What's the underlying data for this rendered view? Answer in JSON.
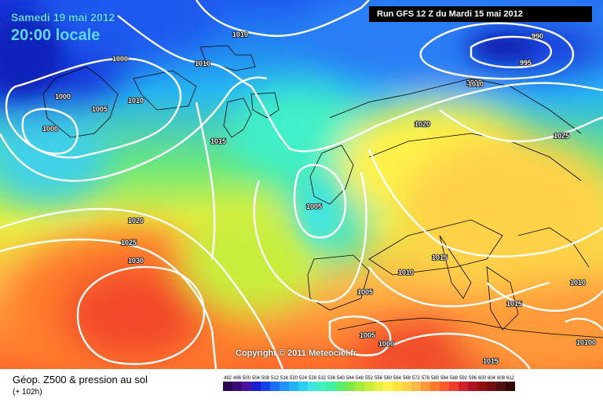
{
  "header": {
    "date": "Samedi 19 mai 2012",
    "time": "20:00 locale",
    "run": "Run GFS 12 Z du Mardi 15 mai 2012"
  },
  "copyright": "Copyright © 2011 Meteociel.fr",
  "footer": {
    "title": "Géop. Z500 & pression au sol",
    "lead": "(+ 102h)"
  },
  "isobar_labels": [
    "1010",
    "1010",
    "1000",
    "1010",
    "1000",
    "1005",
    "1000",
    "1010",
    "1015",
    "1020",
    "990",
    "995",
    "1010",
    "1020",
    "1025",
    "1005",
    "1020",
    "1025",
    "1030",
    "1015",
    "1010",
    "1005",
    "1005",
    "1000",
    "1015",
    "1010",
    "1015",
    "10100"
  ],
  "scale": {
    "values": [
      "492",
      "496",
      "500",
      "504",
      "508",
      "512",
      "516",
      "520",
      "524",
      "528",
      "532",
      "536",
      "540",
      "544",
      "548",
      "552",
      "556",
      "560",
      "564",
      "568",
      "572",
      "576",
      "580",
      "584",
      "588",
      "592",
      "596",
      "600",
      "604",
      "608",
      "612"
    ],
    "colors": [
      "#2a0a55",
      "#3a0a78",
      "#4b12a0",
      "#1b1bd0",
      "#1640e8",
      "#1c6cf5",
      "#1e90ff",
      "#21b2f5",
      "#2ad0ee",
      "#3fe6e0",
      "#40f0c0",
      "#40f0a0",
      "#5aee70",
      "#7ee84a",
      "#a6ea3a",
      "#c8ee3c",
      "#e6f040",
      "#fff24a",
      "#ffe53a",
      "#ffd24a",
      "#ffb74a",
      "#ff9a3a",
      "#ff7a2a",
      "#ff5a2a",
      "#f03a2a",
      "#d0202a",
      "#b01020",
      "#901010",
      "#701010",
      "#501010",
      "#300808"
    ]
  }
}
